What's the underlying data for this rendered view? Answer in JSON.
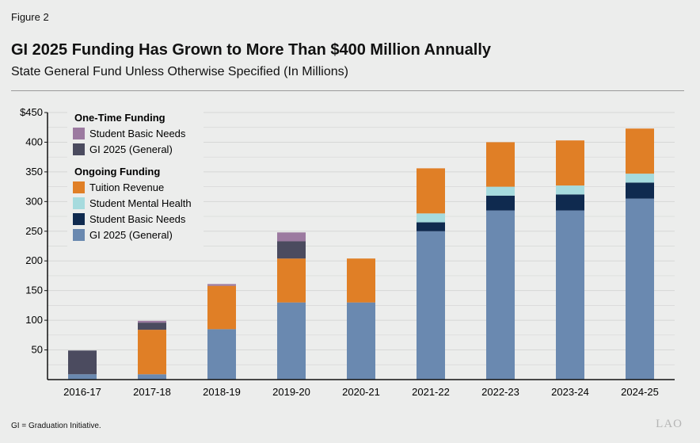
{
  "figure_label": "Figure 2",
  "title": "GI 2025 Funding Has Grown to More Than $400 Million Annually",
  "subtitle": "State General Fund Unless Otherwise Specified (In Millions)",
  "footnote": "GI = Graduation Initiative.",
  "logo_text": "LAO",
  "chart_data": {
    "type": "bar",
    "stacked": true,
    "categories": [
      "2016-17",
      "2017-18",
      "2018-19",
      "2019-20",
      "2020-21",
      "2021-22",
      "2022-23",
      "2023-24",
      "2024-25"
    ],
    "ylim": [
      0,
      450
    ],
    "yticks": [
      50,
      100,
      150,
      200,
      250,
      300,
      350,
      400,
      450
    ],
    "ytick_labels": [
      "50",
      "100",
      "150",
      "200",
      "250",
      "300",
      "350",
      "400",
      "$450"
    ],
    "grid": true,
    "legend_position": "top-left",
    "legend_groups": [
      {
        "title": "One-Time Funding",
        "series": [
          "onetime_sbn",
          "onetime_gi"
        ]
      },
      {
        "title": "Ongoing Funding",
        "series": [
          "tuition",
          "smh",
          "sbn",
          "gi"
        ]
      }
    ],
    "series": [
      {
        "key": "gi",
        "name": "GI 2025 (General)",
        "color": "#6a89b0",
        "values": [
          9,
          9,
          85,
          130,
          130,
          250,
          285,
          285,
          305
        ]
      },
      {
        "key": "sbn",
        "name": "Student Basic Needs",
        "color": "#0f2a4f",
        "values": [
          0,
          0,
          0,
          0,
          0,
          15,
          25,
          27,
          27
        ]
      },
      {
        "key": "smh",
        "name": "Student Mental Health",
        "color": "#a6dbde",
        "values": [
          0,
          0,
          0,
          0,
          0,
          15,
          15,
          15,
          15
        ]
      },
      {
        "key": "tuition",
        "name": "Tuition Revenue",
        "color": "#e07f26",
        "values": [
          0,
          75,
          73,
          74,
          74,
          76,
          75,
          76,
          76
        ]
      },
      {
        "key": "onetime_gi",
        "name": "GI 2025 (General)",
        "color": "#4b4b5f",
        "values": [
          40,
          12,
          0,
          29,
          0,
          0,
          0,
          0,
          0
        ]
      },
      {
        "key": "onetime_sbn",
        "name": "Student Basic Needs",
        "color": "#9c7aa0",
        "values": [
          0,
          3,
          3,
          15,
          0,
          0,
          0,
          0,
          0
        ]
      }
    ]
  }
}
